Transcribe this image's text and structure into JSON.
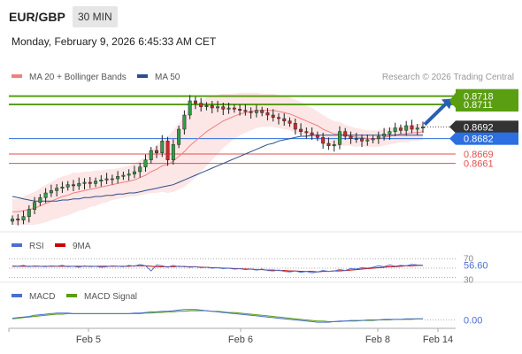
{
  "header": {
    "pair": "EUR/GBP",
    "timeframe": "30 MIN",
    "datetime": "Monday, February 9, 2026 6:45:33 AM CET"
  },
  "legend": {
    "ma20": "MA 20 + Bollinger Bands",
    "ma50": "MA 50",
    "credit": "Research © 2026 Trading Central"
  },
  "colors": {
    "green": "#5a9e12",
    "blue": "#2d6fe0",
    "red": "#e84d4d",
    "dark": "#333333",
    "bands": "#fde3e3",
    "ma20": "#f08080",
    "ma50": "#2b4f8a"
  },
  "chart_data": [
    {
      "type": "candlestick",
      "name": "price",
      "x_ticks": [
        "Feb 5",
        "Feb 6",
        "Feb 8",
        "Feb 14"
      ],
      "levels": [
        {
          "label": "0.8718",
          "value": 0.8718,
          "kind": "resistance"
        },
        {
          "label": "0.8711",
          "value": 0.8711,
          "kind": "resistance"
        },
        {
          "label": "0.8692",
          "value": 0.8692,
          "kind": "last"
        },
        {
          "label": "0.8682",
          "value": 0.8682,
          "kind": "pivot"
        },
        {
          "label": "0.8669",
          "value": 0.8669,
          "kind": "support"
        },
        {
          "label": "0.8661",
          "value": 0.8661,
          "kind": "support"
        }
      ],
      "ylim": [
        0.8606,
        0.8726
      ],
      "close_path": [
        0.8614,
        0.8613,
        0.8616,
        0.8622,
        0.8628,
        0.8632,
        0.8636,
        0.8638,
        0.864,
        0.8641,
        0.8643,
        0.8642,
        0.8644,
        0.8645,
        0.8644,
        0.8646,
        0.8647,
        0.8648,
        0.8648,
        0.865,
        0.8651,
        0.8652,
        0.8654,
        0.8658,
        0.8664,
        0.8672,
        0.867,
        0.868,
        0.8664,
        0.8677,
        0.869,
        0.8702,
        0.8714,
        0.8712,
        0.8709,
        0.871,
        0.8708,
        0.8709,
        0.8707,
        0.8708,
        0.8707,
        0.8706,
        0.8705,
        0.8704,
        0.8706,
        0.8704,
        0.8702,
        0.87,
        0.8699,
        0.8697,
        0.8695,
        0.869,
        0.8688,
        0.8687,
        0.8685,
        0.8683,
        0.8678,
        0.8676,
        0.8677,
        0.8688,
        0.8684,
        0.8682,
        0.8682,
        0.868,
        0.8681,
        0.8682,
        0.8684,
        0.8686,
        0.8688,
        0.8691,
        0.8689,
        0.8693,
        0.869,
        0.8691,
        0.8692
      ],
      "ma20": [
        0.862,
        0.862,
        0.8621,
        0.8622,
        0.8623,
        0.8625,
        0.8627,
        0.8629,
        0.8631,
        0.8633,
        0.8634,
        0.8636,
        0.8637,
        0.8638,
        0.8639,
        0.864,
        0.8641,
        0.8642,
        0.8643,
        0.8644,
        0.8645,
        0.8646,
        0.8647,
        0.8649,
        0.8651,
        0.8654,
        0.8656,
        0.8659,
        0.866,
        0.8663,
        0.8667,
        0.8671,
        0.8676,
        0.868,
        0.8684,
        0.8688,
        0.8691,
        0.8694,
        0.8697,
        0.8699,
        0.8701,
        0.8703,
        0.8704,
        0.8705,
        0.8706,
        0.8706,
        0.8706,
        0.8706,
        0.8705,
        0.8704,
        0.8703,
        0.8701,
        0.8699,
        0.8697,
        0.8695,
        0.8693,
        0.869,
        0.8688,
        0.8686,
        0.8686,
        0.8685,
        0.8684,
        0.8683,
        0.8683,
        0.8682,
        0.8682,
        0.8682,
        0.8683,
        0.8684,
        0.8685,
        0.8686,
        0.8686,
        0.8687,
        0.8687,
        0.8688
      ],
      "ma50": [
        0.8633,
        0.8632,
        0.8631,
        0.863,
        0.8629,
        0.8629,
        0.8629,
        0.8629,
        0.8629,
        0.863,
        0.863,
        0.8631,
        0.8631,
        0.8632,
        0.8632,
        0.8633,
        0.8633,
        0.8634,
        0.8634,
        0.8635,
        0.8635,
        0.8636,
        0.8636,
        0.8637,
        0.8638,
        0.8639,
        0.864,
        0.8641,
        0.8642,
        0.8643,
        0.8645,
        0.8647,
        0.8649,
        0.8651,
        0.8653,
        0.8655,
        0.8657,
        0.8659,
        0.8661,
        0.8663,
        0.8665,
        0.8667,
        0.8669,
        0.8671,
        0.8673,
        0.8675,
        0.8677,
        0.8678,
        0.868,
        0.8681,
        0.8682,
        0.8683,
        0.8684,
        0.8684,
        0.8685,
        0.8685,
        0.8685,
        0.8685,
        0.8685,
        0.8685,
        0.8685,
        0.8685,
        0.8685,
        0.8685,
        0.8685,
        0.8685,
        0.8685,
        0.8685,
        0.8685,
        0.8685,
        0.8685,
        0.8685,
        0.8685,
        0.8685,
        0.8685
      ],
      "band_width": [
        0.0011,
        0.0011,
        0.0012,
        0.0013,
        0.0014,
        0.0015,
        0.0016,
        0.0016,
        0.0017,
        0.0017,
        0.0017,
        0.0017,
        0.0016,
        0.0016,
        0.0015,
        0.0015,
        0.0014,
        0.0014,
        0.0013,
        0.0013,
        0.0013,
        0.0013,
        0.0014,
        0.0015,
        0.0016,
        0.0018,
        0.002,
        0.0022,
        0.0024,
        0.0026,
        0.0028,
        0.003,
        0.0031,
        0.0031,
        0.003,
        0.0029,
        0.0027,
        0.0025,
        0.0023,
        0.0021,
        0.0019,
        0.0018,
        0.0017,
        0.0016,
        0.0015,
        0.0014,
        0.0014,
        0.0014,
        0.0014,
        0.0014,
        0.0014,
        0.0014,
        0.0014,
        0.0013,
        0.0013,
        0.0012,
        0.0012,
        0.0011,
        0.0011,
        0.001,
        0.0009,
        0.0008,
        0.0008,
        0.0007,
        0.0007,
        0.0007,
        0.0007,
        0.0007,
        0.0007,
        0.0007,
        0.0007,
        0.0007,
        0.0007,
        0.0007,
        0.0007
      ]
    },
    {
      "type": "line",
      "name": "RSI",
      "series": [
        {
          "name": "RSI"
        },
        {
          "name": "9MA"
        }
      ],
      "levels": [
        70,
        50,
        30
      ],
      "level_labels": [
        "70",
        "30"
      ],
      "last_value": "56.60",
      "ylim": [
        25,
        75
      ],
      "rsi": [
        55,
        54,
        56,
        53,
        55,
        54,
        53,
        55,
        54,
        56,
        53,
        54,
        52,
        55,
        53,
        54,
        52,
        53,
        55,
        54,
        53,
        56,
        54,
        58,
        55,
        44,
        57,
        55,
        52,
        56,
        53,
        54,
        52,
        53,
        51,
        52,
        50,
        51,
        49,
        50,
        48,
        49,
        47,
        48,
        46,
        48,
        45,
        44,
        46,
        43,
        42,
        44,
        41,
        43,
        40,
        42,
        45,
        43,
        44,
        47,
        45,
        49,
        48,
        51,
        50,
        52,
        55,
        53,
        57,
        54,
        56,
        55,
        58,
        57,
        56.6
      ],
      "ma9": [
        54,
        54,
        54,
        54,
        54,
        54,
        54,
        54,
        54,
        54,
        54,
        54,
        54,
        54,
        54,
        54,
        54,
        54,
        54,
        54,
        54,
        54,
        55,
        55,
        55,
        54,
        53,
        53,
        53,
        53,
        54,
        53,
        53,
        53,
        52,
        52,
        51,
        51,
        50,
        50,
        49,
        49,
        48,
        48,
        47,
        47,
        46,
        46,
        45,
        45,
        44,
        44,
        43,
        43,
        43,
        42,
        43,
        43,
        44,
        44,
        45,
        46,
        47,
        48,
        49,
        50,
        51,
        52,
        53,
        53,
        54,
        55,
        55,
        56,
        56
      ]
    },
    {
      "type": "line",
      "name": "MACD",
      "series": [
        {
          "name": "MACD"
        },
        {
          "name": "MACD Signal"
        }
      ],
      "last_value": "0.00",
      "ylim": [
        -0.001,
        0.003
      ],
      "macd": [
        0.0003,
        0.0004,
        0.0005,
        0.0006,
        0.0008,
        0.0009,
        0.001,
        0.0011,
        0.0012,
        0.0012,
        0.0012,
        0.0011,
        0.0011,
        0.0011,
        0.0011,
        0.0011,
        0.0011,
        0.0011,
        0.0011,
        0.0011,
        0.0011,
        0.0011,
        0.0012,
        0.0012,
        0.0013,
        0.0014,
        0.0014,
        0.0015,
        0.0015,
        0.0016,
        0.0017,
        0.0018,
        0.0018,
        0.0018,
        0.0017,
        0.0016,
        0.0015,
        0.0014,
        0.0013,
        0.0012,
        0.0011,
        0.001,
        0.0009,
        0.0008,
        0.0007,
        0.0006,
        0.0005,
        0.0004,
        0.0003,
        0.0002,
        0.0001,
        0.0,
        -0.0001,
        -0.0002,
        -0.0003,
        -0.0004,
        -0.0004,
        -0.0004,
        -0.0003,
        -0.0002,
        -0.0002,
        -0.0001,
        -0.0001,
        -0.0001,
        0.0,
        0.0,
        0.0,
        0.0001,
        0.0001,
        0.0001,
        0.0001,
        0.0002,
        0.0002,
        0.0002,
        0.0002
      ],
      "signal": [
        0.0002,
        0.0003,
        0.0004,
        0.0005,
        0.0006,
        0.0007,
        0.0008,
        0.0009,
        0.001,
        0.001,
        0.0011,
        0.0011,
        0.0011,
        0.0011,
        0.0011,
        0.0011,
        0.0011,
        0.0011,
        0.0011,
        0.0011,
        0.0011,
        0.0011,
        0.0011,
        0.0011,
        0.0012,
        0.0012,
        0.0013,
        0.0013,
        0.0014,
        0.0014,
        0.0015,
        0.0015,
        0.0016,
        0.0016,
        0.0016,
        0.0016,
        0.0015,
        0.0015,
        0.0014,
        0.0013,
        0.0013,
        0.0012,
        0.0011,
        0.001,
        0.0009,
        0.0008,
        0.0007,
        0.0006,
        0.0005,
        0.0004,
        0.0003,
        0.0002,
        0.0001,
        0.0,
        -0.0001,
        -0.0002,
        -0.0002,
        -0.0003,
        -0.0003,
        -0.0003,
        -0.0002,
        -0.0002,
        -0.0002,
        -0.0001,
        -0.0001,
        -0.0001,
        0.0,
        0.0,
        0.0,
        0.0001,
        0.0001,
        0.0001,
        0.0001,
        0.0002,
        0.0002
      ]
    }
  ]
}
